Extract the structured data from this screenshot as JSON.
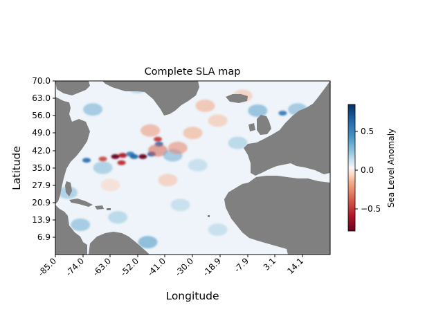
{
  "title": "Complete SLA map",
  "xlabel": "Longitude",
  "ylabel": "Latitude",
  "colorbar": {
    "label": "Sea Level Anomaly",
    "range": [
      -0.8,
      0.8
    ],
    "ticks": [
      {
        "value": 0.5,
        "label": "0.5"
      },
      {
        "value": 0.0,
        "label": "0.0"
      },
      {
        "value": -0.5,
        "label": "−0.5"
      }
    ],
    "colormap": "RdBu_r",
    "colors": {
      "low": "#67001f",
      "mid": "#f7f7f7",
      "high": "#053061"
    }
  },
  "map": {
    "lon_range": [
      -85.0,
      25.0
    ],
    "lat_range": [
      0.0,
      70.0
    ],
    "land_color": "#808080",
    "xticks": [
      "-85.0",
      "-74.0",
      "-63.0",
      "-52.0",
      "-41.0",
      "-30.0",
      "-18.9",
      "-7.9",
      "3.1",
      "14.1"
    ],
    "yticks": [
      "70.0",
      "63.0",
      "56.0",
      "49.0",
      "42.0",
      "35.0",
      "27.9",
      "20.9",
      "13.9",
      "6.9"
    ]
  },
  "chart_data": {
    "type": "heatmap",
    "title": "Complete SLA map",
    "xlabel": "Longitude",
    "ylabel": "Latitude",
    "xlim": [
      -85.0,
      25.0
    ],
    "ylim": [
      0.0,
      70.0
    ],
    "value_range": [
      -0.8,
      0.8
    ],
    "features": [
      {
        "lon": -72.5,
        "lat": 38.0,
        "value": 0.55
      },
      {
        "lon": -66.0,
        "lat": 38.5,
        "value": -0.45
      },
      {
        "lon": -61.0,
        "lat": 39.5,
        "value": -0.8
      },
      {
        "lon": -58.0,
        "lat": 40.0,
        "value": -0.6
      },
      {
        "lon": -58.5,
        "lat": 37.0,
        "value": -0.55
      },
      {
        "lon": -55.0,
        "lat": 40.5,
        "value": 0.5
      },
      {
        "lon": -53.5,
        "lat": 39.5,
        "value": 0.6
      },
      {
        "lon": -50.0,
        "lat": 39.5,
        "value": -0.8
      },
      {
        "lon": -46.5,
        "lat": 40.5,
        "value": 0.6
      },
      {
        "lon": -43.5,
        "lat": 44.5,
        "value": 0.55
      },
      {
        "lon": -44.0,
        "lat": 46.5,
        "value": -0.5
      },
      {
        "lon": -44.0,
        "lat": 42.0,
        "value": -0.4
      },
      {
        "lon": -38.0,
        "lat": 40.0,
        "value": 0.3
      },
      {
        "lon": -36.0,
        "lat": 43.0,
        "value": -0.3
      },
      {
        "lon": -66.0,
        "lat": 35.0,
        "value": 0.25
      },
      {
        "lon": -47.0,
        "lat": 50.0,
        "value": -0.25
      },
      {
        "lon": -30.0,
        "lat": 49.0,
        "value": -0.2
      },
      {
        "lon": -70.0,
        "lat": 58.5,
        "value": 0.3
      },
      {
        "lon": -52.0,
        "lat": 67.5,
        "value": 0.2
      },
      {
        "lon": -10.0,
        "lat": 64.0,
        "value": -0.15
      },
      {
        "lon": -25.0,
        "lat": 60.0,
        "value": -0.2
      },
      {
        "lon": -20.0,
        "lat": 54.0,
        "value": -0.15
      },
      {
        "lon": -12.0,
        "lat": 45.0,
        "value": 0.2
      },
      {
        "lon": -4.0,
        "lat": 58.0,
        "value": 0.35
      },
      {
        "lon": 6.0,
        "lat": 57.0,
        "value": 0.5
      },
      {
        "lon": 12.0,
        "lat": 58.5,
        "value": 0.3
      },
      {
        "lon": -80.0,
        "lat": 25.0,
        "value": 0.25
      },
      {
        "lon": -75.0,
        "lat": 12.0,
        "value": 0.3
      },
      {
        "lon": -60.0,
        "lat": 15.0,
        "value": 0.2
      },
      {
        "lon": -48.0,
        "lat": 5.0,
        "value": 0.4
      },
      {
        "lon": -20.0,
        "lat": 10.0,
        "value": 0.15
      },
      {
        "lon": -35.0,
        "lat": 20.0,
        "value": 0.15
      },
      {
        "lon": -52.0,
        "lat": 1.5,
        "value": 0.55
      },
      {
        "lon": -63.0,
        "lat": 28.0,
        "value": -0.1
      },
      {
        "lon": -40.0,
        "lat": 30.0,
        "value": -0.15
      },
      {
        "lon": -28.0,
        "lat": 36.0,
        "value": 0.15
      }
    ]
  }
}
